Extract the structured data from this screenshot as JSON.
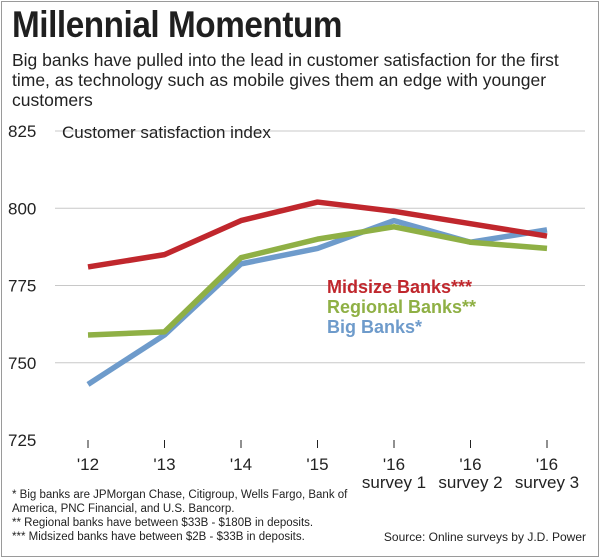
{
  "chart_data": {
    "type": "line",
    "title": "Millennial Momentum",
    "subtitle": "Big banks have pulled into the lead in customer satisfaction for the first time, as technology such as mobile gives them an edge with younger customers",
    "ylabel": "Customer satisfaction index",
    "xlabel": "",
    "categories": [
      "'12",
      "'13",
      "'14",
      "'15",
      "'16 survey 1",
      "'16 survey 2",
      "'16 survey 3"
    ],
    "category_lines": [
      [
        "'12"
      ],
      [
        "'13"
      ],
      [
        "'14"
      ],
      [
        "'15"
      ],
      [
        "'16",
        "survey 1"
      ],
      [
        "'16",
        "survey 2"
      ],
      [
        "'16",
        "survey 3"
      ]
    ],
    "ylim": [
      725,
      825
    ],
    "yticks": [
      725,
      750,
      775,
      800,
      825
    ],
    "grid": "horizontal",
    "legend_placement": "inline-right",
    "series": [
      {
        "name": "Midsize Banks***",
        "color": "#c0272d",
        "values": [
          781,
          785,
          796,
          802,
          799,
          795,
          791
        ]
      },
      {
        "name": "Regional Banks**",
        "color": "#8fb045",
        "values": [
          759,
          760,
          784,
          790,
          794,
          789,
          787
        ]
      },
      {
        "name": "Big Banks*",
        "color": "#6e9bcb",
        "values": [
          743,
          759,
          782,
          787,
          796,
          789,
          793
        ]
      }
    ]
  },
  "footnotes": [
    "* Big banks are JPMorgan Chase, Citigroup, Wells Fargo, Bank of America, PNC Financial, and U.S. Bancorp.",
    "** Regional banks have between $33B - $180B in deposits.",
    "*** Midsized banks have between $2B - $33B in deposits."
  ],
  "source": "Source: Online surveys by J.D. Power"
}
